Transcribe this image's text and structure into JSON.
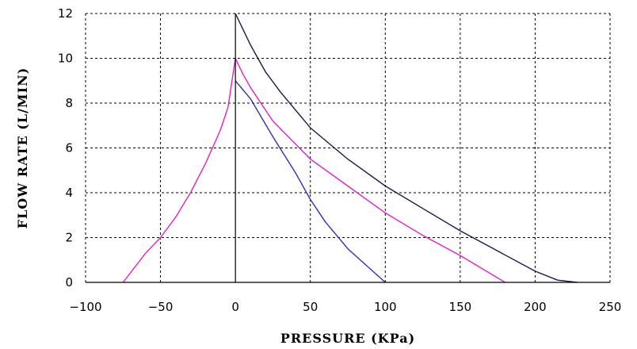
{
  "chart_data": {
    "type": "line",
    "title": "",
    "xlabel": "PRESSURE (KPa)",
    "ylabel": "FLOW RATE (L/MIN)",
    "xlim": [
      -100,
      250
    ],
    "ylim": [
      0,
      12
    ],
    "x_ticks": [
      -100,
      -50,
      0,
      50,
      100,
      150,
      200,
      250
    ],
    "y_ticks": [
      0,
      2,
      4,
      6,
      8,
      10,
      12
    ],
    "grid": true,
    "grid_style": "dashed",
    "series": [
      {
        "color": "#1a1a4e",
        "points": [
          [
            0,
            12
          ],
          [
            5,
            11.3
          ],
          [
            10,
            10.6
          ],
          [
            20,
            9.4
          ],
          [
            30,
            8.5
          ],
          [
            50,
            6.9
          ],
          [
            75,
            5.5
          ],
          [
            100,
            4.3
          ],
          [
            125,
            3.3
          ],
          [
            150,
            2.3
          ],
          [
            175,
            1.4
          ],
          [
            200,
            0.5
          ],
          [
            215,
            0.1
          ],
          [
            228,
            0
          ]
        ]
      },
      {
        "color": "#e020c8",
        "points": [
          [
            -75,
            0
          ],
          [
            -60,
            1.3
          ],
          [
            -50,
            2.0
          ],
          [
            -40,
            2.9
          ],
          [
            -30,
            4.0
          ],
          [
            -20,
            5.3
          ],
          [
            -10,
            6.8
          ],
          [
            -5,
            7.8
          ],
          [
            0,
            10
          ],
          [
            5,
            9.3
          ],
          [
            10,
            8.7
          ],
          [
            25,
            7.2
          ],
          [
            50,
            5.5
          ],
          [
            75,
            4.3
          ],
          [
            100,
            3.1
          ],
          [
            125,
            2.1
          ],
          [
            150,
            1.2
          ],
          [
            180,
            0
          ]
        ]
      },
      {
        "color": "#3030b0",
        "points": [
          [
            0,
            9
          ],
          [
            10,
            8.2
          ],
          [
            25,
            6.5
          ],
          [
            40,
            4.9
          ],
          [
            50,
            3.7
          ],
          [
            60,
            2.7
          ],
          [
            75,
            1.5
          ],
          [
            90,
            0.6
          ],
          [
            100,
            0
          ]
        ]
      }
    ]
  }
}
